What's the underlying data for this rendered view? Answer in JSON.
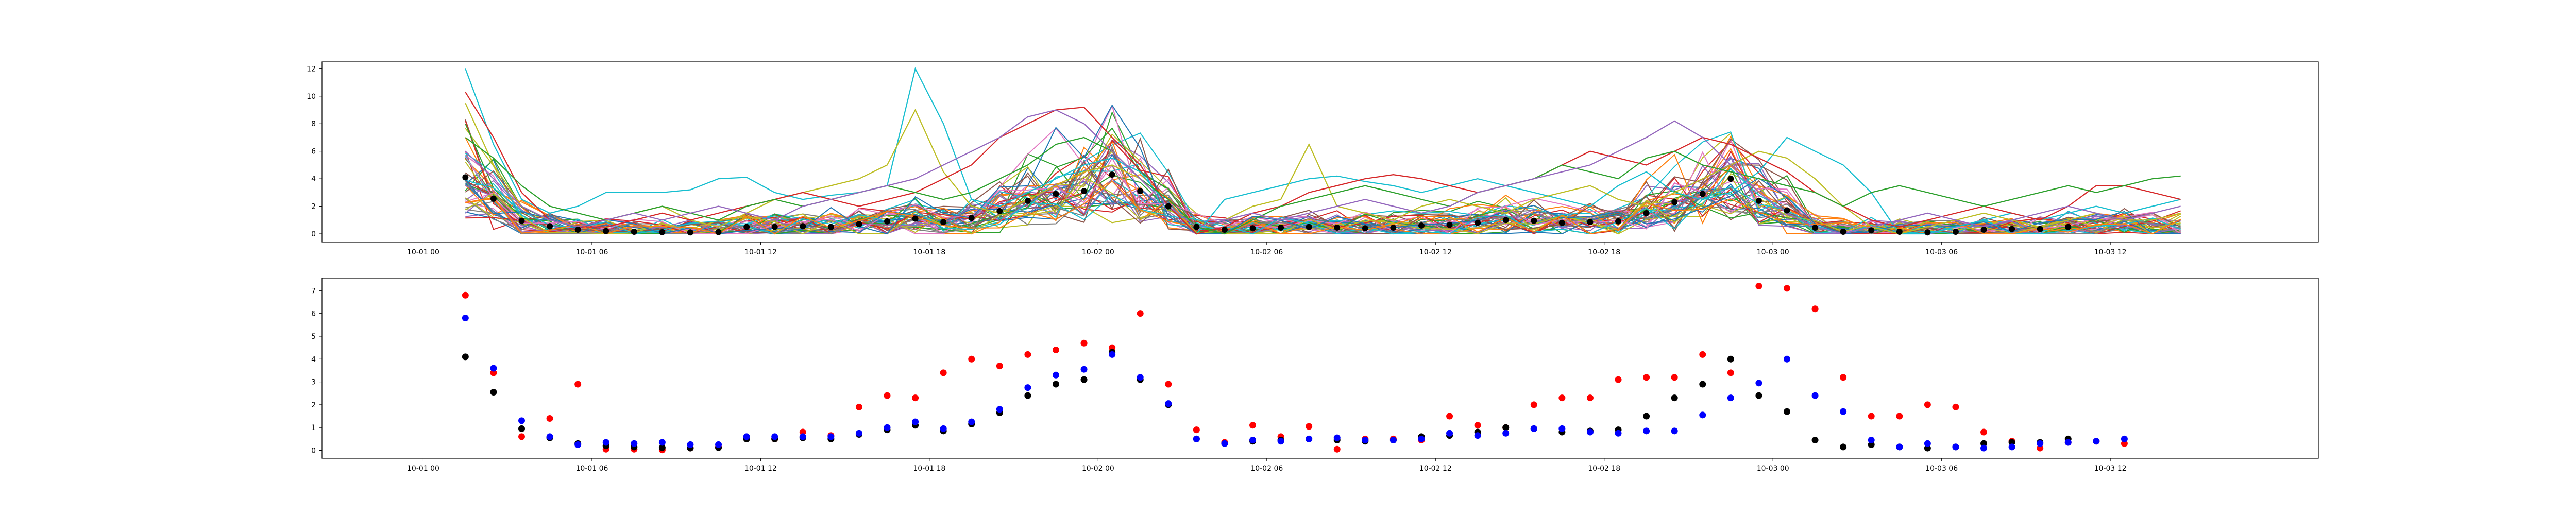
{
  "chart_data": [
    {
      "type": "line",
      "title": "",
      "xlabel": "",
      "ylabel": "",
      "x_ticks": [
        "10-01 00",
        "10-01 06",
        "10-01 12",
        "10-01 18",
        "10-02 00",
        "10-02 06",
        "10-02 12",
        "10-02 18",
        "10-03 00",
        "10-03 06",
        "10-03 12"
      ],
      "y_ticks": [
        0,
        2,
        4,
        6,
        8,
        10,
        12
      ],
      "xlim_hours": [
        -3.6,
        67.4
      ],
      "ylim": [
        -0.6,
        12.5
      ],
      "grid": false,
      "legend": "none",
      "x_start_hour": 1.5,
      "x_step_hours": 1,
      "palette": [
        "#1f77b4",
        "#ff7f0e",
        "#2ca02c",
        "#d62728",
        "#9467bd",
        "#8c564b",
        "#e377c2",
        "#7f7f7f",
        "#bcbd22",
        "#17becf"
      ],
      "highlight_series": [
        {
          "values": [
            12.0,
            6.5,
            2.5,
            1.5,
            2.0,
            3.0,
            3.0,
            3.0,
            3.2,
            4.0,
            4.1,
            3.0,
            2.5,
            2.8,
            3.0,
            3.5,
            12.0,
            8.0,
            2.5,
            2.0,
            3.0,
            4.0,
            5.0,
            5.5,
            4.5,
            2.0,
            0.0,
            2.5,
            3.0,
            3.5,
            4.0,
            4.2,
            3.8,
            3.5,
            3.0,
            3.5,
            4.0,
            3.5,
            3.0,
            2.5,
            2.0,
            3.5,
            4.5,
            3.0,
            2.5,
            3.0,
            4.5,
            7.0,
            6.0,
            5.0,
            3.0,
            0.0,
            0.0,
            0.5,
            1.0,
            1.5,
            1.0,
            1.5,
            2.0,
            1.5,
            2.0,
            2.5
          ],
          "color": "#17becf"
        },
        {
          "values": [
            9.5,
            5.0,
            2.0,
            1.0,
            0.5,
            1.0,
            1.5,
            2.0,
            1.0,
            0.5,
            1.5,
            2.5,
            3.0,
            3.5,
            4.0,
            5.0,
            9.0,
            4.5,
            2.0,
            1.5,
            2.5,
            3.5,
            4.5,
            5.0,
            4.0,
            2.0,
            0.5,
            1.0,
            2.0,
            2.5,
            6.5,
            2.0,
            1.5,
            1.0,
            2.0,
            2.5,
            2.0,
            1.5,
            2.5,
            3.0,
            3.5,
            2.5,
            2.0,
            3.0,
            4.0,
            5.0,
            6.0,
            5.5,
            4.0,
            2.0,
            0.5,
            0.0,
            0.5,
            1.0,
            1.5,
            1.0,
            0.5,
            1.0,
            1.5,
            1.0,
            1.0,
            1.5
          ],
          "color": "#bcbd22"
        },
        {
          "values": [
            10.3,
            7.0,
            3.0,
            1.0,
            0.5,
            0.5,
            1.0,
            1.5,
            1.0,
            1.5,
            2.0,
            2.5,
            3.0,
            2.5,
            2.0,
            2.5,
            3.0,
            4.0,
            5.0,
            7.0,
            8.0,
            9.0,
            9.2,
            7.0,
            5.0,
            2.0,
            0.0,
            0.5,
            1.5,
            2.0,
            3.0,
            3.5,
            4.0,
            4.3,
            4.0,
            3.5,
            3.0,
            3.5,
            4.0,
            5.0,
            6.0,
            5.5,
            5.0,
            6.0,
            7.0,
            6.5,
            5.5,
            4.5,
            3.0,
            2.0,
            1.0,
            0.5,
            1.0,
            1.5,
            2.0,
            1.5,
            1.0,
            2.0,
            3.5,
            3.5,
            3.0,
            2.5
          ],
          "color": "#d62728"
        },
        {
          "values": [
            7.0,
            5.5,
            3.5,
            2.0,
            1.5,
            1.0,
            1.5,
            2.0,
            1.5,
            1.0,
            2.0,
            2.5,
            2.0,
            2.5,
            3.0,
            3.5,
            3.0,
            2.5,
            3.0,
            4.0,
            5.0,
            6.5,
            7.0,
            6.0,
            4.0,
            2.5,
            0.5,
            0.0,
            1.0,
            2.0,
            2.5,
            3.0,
            3.5,
            3.0,
            2.5,
            2.0,
            3.0,
            3.5,
            4.0,
            5.0,
            4.5,
            4.0,
            5.5,
            6.0,
            5.0,
            4.5,
            4.0,
            3.5,
            3.0,
            2.0,
            3.0,
            3.5,
            3.0,
            2.5,
            2.0,
            2.5,
            3.0,
            3.5,
            3.0,
            3.5,
            4.0,
            4.2
          ],
          "color": "#2ca02c"
        },
        {
          "values": [
            6.0,
            4.0,
            2.0,
            1.0,
            0.5,
            1.0,
            1.5,
            1.0,
            1.5,
            2.0,
            1.5,
            1.0,
            2.0,
            2.5,
            3.0,
            3.5,
            4.0,
            5.0,
            6.0,
            7.0,
            8.5,
            9.0,
            8.0,
            6.0,
            4.0,
            2.0,
            0.5,
            1.0,
            1.5,
            1.0,
            1.5,
            2.0,
            2.5,
            2.0,
            1.5,
            2.0,
            3.0,
            3.5,
            4.0,
            4.5,
            5.0,
            6.0,
            7.0,
            8.2,
            7.0,
            5.0,
            3.0,
            1.5,
            0.5,
            0.0,
            0.5,
            1.0,
            1.5,
            1.0,
            0.5,
            1.0,
            1.5,
            2.0,
            1.5,
            1.0,
            1.5,
            2.0
          ],
          "color": "#9467bd"
        }
      ],
      "thin_series_count": 42,
      "black_series": {
        "name": "",
        "color": "#000000",
        "start_hour": 1.5,
        "step_hours": 1,
        "values": [
          4.1,
          2.55,
          0.95,
          0.55,
          0.3,
          0.2,
          0.15,
          0.12,
          0.1,
          0.12,
          0.5,
          0.5,
          0.55,
          0.5,
          0.7,
          0.9,
          1.1,
          0.85,
          1.15,
          1.65,
          2.4,
          2.9,
          3.1,
          4.3,
          3.1,
          2.0,
          0.5,
          0.3,
          0.4,
          0.45,
          0.5,
          0.45,
          0.4,
          0.45,
          0.6,
          0.65,
          0.8,
          1.0,
          0.95,
          0.8,
          0.85,
          0.9,
          1.5,
          2.3,
          2.9,
          4.0,
          2.4,
          1.7,
          0.45,
          0.15,
          0.25,
          0.15,
          0.1,
          0.15,
          0.3,
          0.35,
          0.35,
          0.5
        ]
      }
    },
    {
      "type": "scatter",
      "title": "",
      "xlabel": "",
      "ylabel": "",
      "x_ticks": [
        "10-01 00",
        "10-01 06",
        "10-01 12",
        "10-01 18",
        "10-02 00",
        "10-02 06",
        "10-02 12",
        "10-02 18",
        "10-03 00",
        "10-03 06",
        "10-03 12"
      ],
      "y_ticks": [
        0,
        1,
        2,
        3,
        4,
        5,
        6,
        7
      ],
      "xlim_hours": [
        -3.6,
        67.4
      ],
      "ylim": [
        -0.35,
        7.55
      ],
      "grid": false,
      "legend": "none",
      "start_hour": 1.5,
      "step_hours": 1,
      "series": [
        {
          "name": "",
          "color": "#ff0000",
          "values": [
            6.8,
            3.4,
            0.6,
            1.4,
            2.9,
            0.05,
            0.05,
            0.02,
            0.1,
            0.15,
            0.55,
            0.5,
            0.8,
            0.65,
            1.9,
            2.4,
            2.3,
            3.4,
            4.0,
            3.7,
            4.2,
            4.4,
            4.7,
            4.5,
            6.0,
            2.9,
            0.9,
            0.35,
            1.1,
            0.6,
            1.05,
            0.05,
            0.5,
            0.5,
            0.45,
            1.5,
            1.1,
            1.0,
            2.0,
            2.3,
            2.3,
            3.1,
            3.2,
            3.2,
            4.2,
            3.4,
            7.2,
            7.1,
            6.2,
            3.2,
            1.5,
            1.5,
            2.0,
            1.9,
            0.8,
            0.4,
            0.1,
            0.35,
            0.4,
            0.3
          ]
        },
        {
          "name": "",
          "color": "#000000",
          "values": [
            4.1,
            2.55,
            0.95,
            0.55,
            0.3,
            0.2,
            0.15,
            0.12,
            0.1,
            0.12,
            0.5,
            0.5,
            0.55,
            0.5,
            0.7,
            0.9,
            1.1,
            0.85,
            1.15,
            1.65,
            2.4,
            2.9,
            3.1,
            4.3,
            3.1,
            2.0,
            0.5,
            0.3,
            0.4,
            0.45,
            0.5,
            0.45,
            0.4,
            0.45,
            0.6,
            0.65,
            0.8,
            1.0,
            0.95,
            0.8,
            0.85,
            0.9,
            1.5,
            2.3,
            2.9,
            4.0,
            2.4,
            1.7,
            0.45,
            0.15,
            0.25,
            0.15,
            0.1,
            0.15,
            0.3,
            0.35,
            0.35,
            0.5
          ]
        },
        {
          "name": "",
          "color": "#0000ff",
          "values": [
            5.8,
            3.6,
            1.3,
            0.6,
            0.25,
            0.35,
            0.3,
            0.35,
            0.25,
            0.25,
            0.6,
            0.6,
            0.6,
            0.6,
            0.75,
            1.0,
            1.25,
            0.95,
            1.25,
            1.8,
            2.75,
            3.3,
            3.55,
            4.2,
            3.2,
            2.05,
            0.5,
            0.3,
            0.45,
            0.4,
            0.5,
            0.55,
            0.45,
            0.45,
            0.5,
            0.75,
            0.65,
            0.75,
            0.95,
            0.95,
            0.8,
            0.75,
            0.85,
            0.85,
            1.55,
            2.3,
            2.95,
            4.0,
            2.4,
            1.7,
            0.45,
            0.15,
            0.3,
            0.15,
            0.1,
            0.15,
            0.3,
            0.35,
            0.4,
            0.5
          ]
        }
      ]
    }
  ]
}
